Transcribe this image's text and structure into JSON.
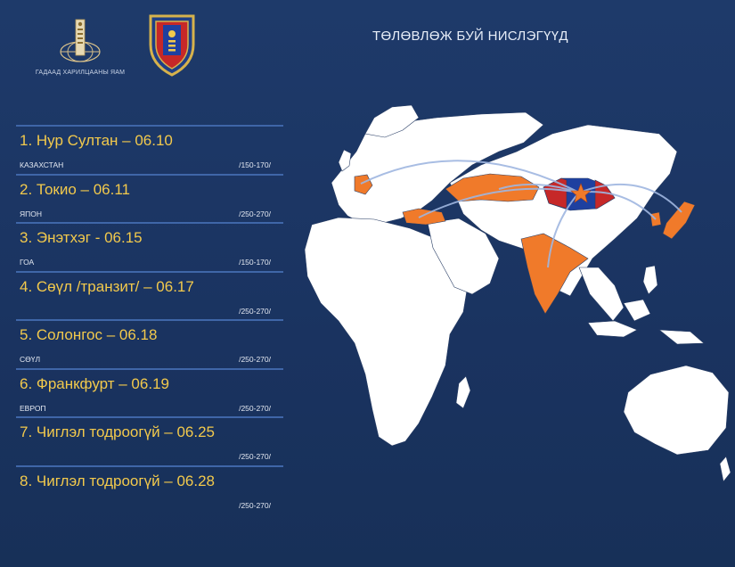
{
  "header": {
    "ministry_name": "ГАДААД ХАРИЛЦААНЫ ЯАМ",
    "title": "ТӨЛӨВЛӨЖ БУЙ НИСЛЭГҮҮД"
  },
  "flights": [
    {
      "title": "1. Нур Султан – 06.10",
      "subtitle": "КАЗАХСТАН",
      "range": "/150-170/"
    },
    {
      "title": "2. Токио – 06.11",
      "subtitle": "ЯПОН",
      "range": "/250-270/"
    },
    {
      "title": "3. Энэтхэг - 06.15",
      "subtitle": "ГОА",
      "range": "/150-170/"
    },
    {
      "title": "4. Сөүл /транзит/  – 06.17",
      "subtitle": "",
      "range": "/250-270/"
    },
    {
      "title": "5. Солонгос – 06.18",
      "subtitle": "СӨҮЛ",
      "range": "/250-270/"
    },
    {
      "title": "6. Франкфурт – 06.19",
      "subtitle": "ЕВРОП",
      "range": "/250-270/"
    },
    {
      "title": "7. Чиглэл тодроогүй – 06.25",
      "subtitle": "",
      "range": "/250-270/"
    },
    {
      "title": "8. Чиглэл тодроогүй – 06.28",
      "subtitle": "",
      "range": "/250-270/"
    }
  ],
  "colors": {
    "background": "#1b3563",
    "land": "#ffffff",
    "highlight": "#f07a2a",
    "flight_title": "#f2c94c",
    "divider": "#3f66a8",
    "route": "#9fb6e0"
  },
  "map": {
    "highlighted_countries": [
      "Kazakhstan",
      "Turkey",
      "Germany",
      "India",
      "Japan",
      "South Korea",
      "Mongolia"
    ],
    "origin": "Mongolia",
    "icons": [
      "ministry-logo",
      "police-emblem",
      "origin-star"
    ]
  }
}
